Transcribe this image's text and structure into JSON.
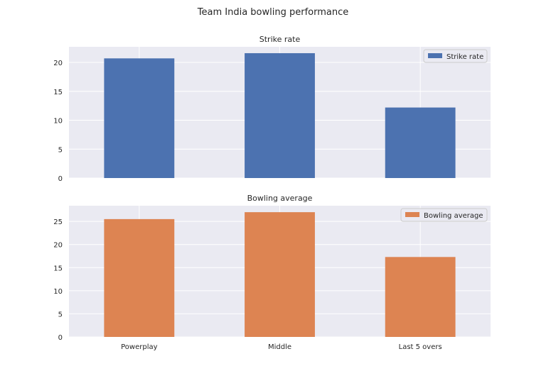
{
  "title": "Team India bowling performance",
  "chart_data": [
    {
      "type": "bar",
      "title": "Strike rate",
      "categories": [
        "Powerplay",
        "Middle",
        "Last 5 overs"
      ],
      "series": [
        {
          "name": "Strike rate",
          "values": [
            20.7,
            21.6,
            12.2
          ],
          "color": "#4c72b0"
        }
      ],
      "xlabel": "",
      "ylabel": "",
      "ylim": [
        0,
        22.7
      ],
      "yticks": [
        0,
        5,
        10,
        15,
        20
      ],
      "show_xticklabels": false,
      "grid": true,
      "legend": "top-right"
    },
    {
      "type": "bar",
      "title": "Bowling average",
      "categories": [
        "Powerplay",
        "Middle",
        "Last 5 overs"
      ],
      "series": [
        {
          "name": "Bowling average",
          "values": [
            25.5,
            27.0,
            17.3
          ],
          "color": "#dd8452"
        }
      ],
      "xlabel": "",
      "ylabel": "",
      "ylim": [
        0,
        28.4
      ],
      "yticks": [
        0,
        5,
        10,
        15,
        20,
        25
      ],
      "show_xticklabels": true,
      "grid": true,
      "legend": "top-right"
    }
  ]
}
